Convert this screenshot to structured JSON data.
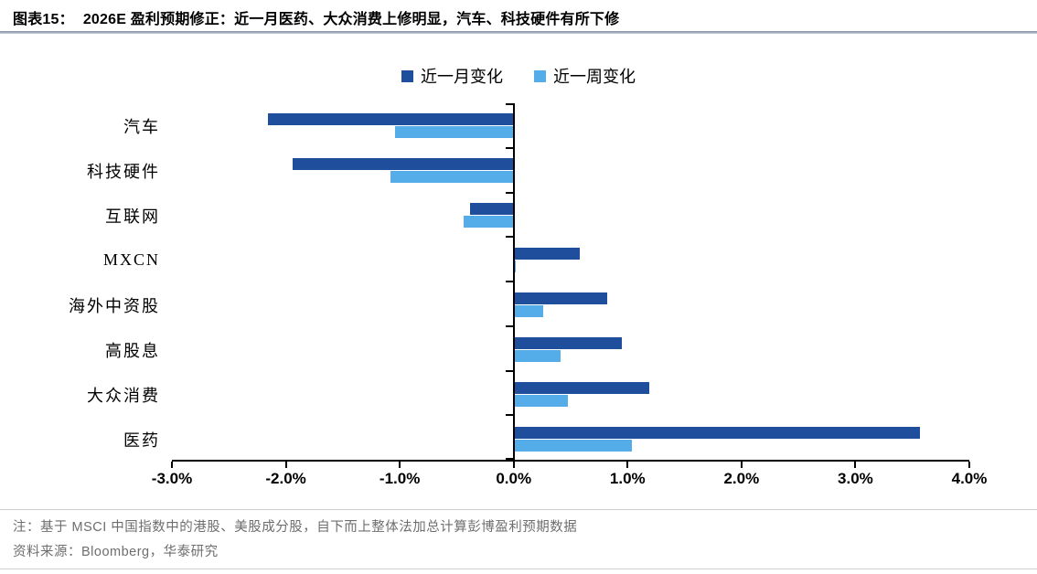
{
  "figure": {
    "number_label": "图表15：",
    "title": "2026E 盈利预期修正：近一月医药、大众消费上修明显，汽车、科技硬件有所下修"
  },
  "chart_data": {
    "type": "bar",
    "orientation": "horizontal",
    "title": "2026E 盈利预期修正",
    "categories": [
      "汽车",
      "科技硬件",
      "互联网",
      "MXCN",
      "海外中资股",
      "高股息",
      "大众消费",
      "医药"
    ],
    "series": [
      {
        "name": "近一月变化",
        "color": "#1F4E9C",
        "values": [
          -2.16,
          -1.94,
          -0.38,
          0.58,
          0.82,
          0.95,
          1.19,
          3.57
        ]
      },
      {
        "name": "近一周变化",
        "color": "#54ADE8",
        "values": [
          -1.04,
          -1.08,
          -0.44,
          0.02,
          0.26,
          0.41,
          0.48,
          1.04
        ]
      }
    ],
    "x_axis": {
      "min": -3,
      "max": 4,
      "unit": "%",
      "tick_labels": [
        "-3.0%",
        "-2.0%",
        "-1.0%",
        "0.0%",
        "1.0%",
        "2.0%",
        "3.0%",
        "4.0%"
      ]
    },
    "legend_position": "top-center",
    "grid": false,
    "axis_color": "#000000"
  },
  "footer": {
    "note": "注：基于 MSCI 中国指数中的港股、美股成分股，自下而上整体法加总计算彭博盈利预期数据",
    "source": "资料来源：Bloomberg，华泰研究"
  }
}
